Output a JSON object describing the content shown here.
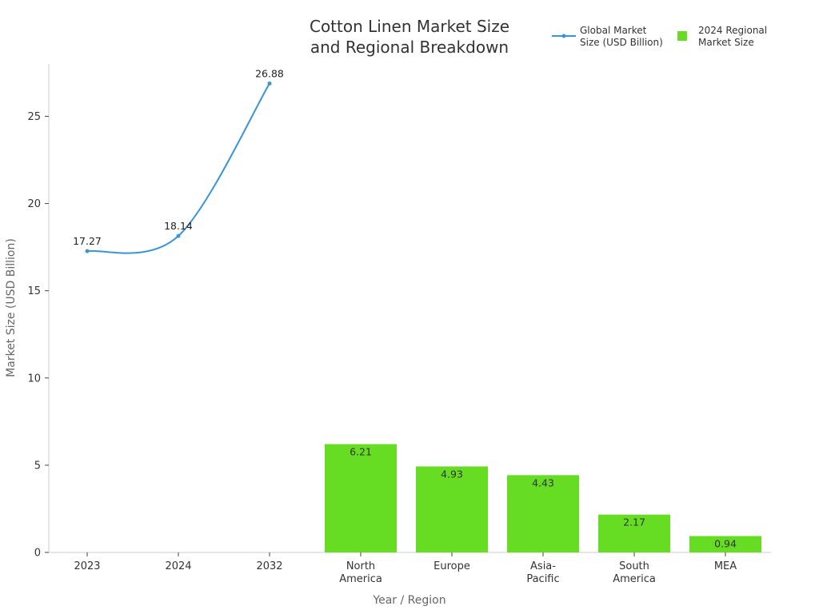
{
  "chart_data": {
    "type": "bar+line",
    "title": [
      "Cotton Linen Market Size",
      "and Regional Breakdown"
    ],
    "xlabel": "Year / Region",
    "ylabel": "Market Size (USD Billion)",
    "ylim": [
      0,
      28
    ],
    "yticks": [
      0,
      5,
      10,
      15,
      20,
      25
    ],
    "grid": false,
    "legend_position": "top-right",
    "categories": [
      [
        "2023"
      ],
      [
        "2024"
      ],
      [
        "2032"
      ],
      [
        "North",
        "America"
      ],
      [
        "Europe"
      ],
      [
        "Asia-",
        "Pacific"
      ],
      [
        "South",
        "America"
      ],
      [
        "MEA"
      ]
    ],
    "series": [
      {
        "name": [
          "Global Market",
          "Size (USD Billion)"
        ],
        "kind": "line",
        "color": "#3a95d8",
        "x": [
          "2023",
          "2024",
          "2032"
        ],
        "values": [
          17.27,
          18.14,
          26.88
        ],
        "labels": [
          "17.27",
          "18.14",
          "26.88"
        ]
      },
      {
        "name": [
          "2024 Regional",
          "Market Size"
        ],
        "kind": "bar",
        "color": "#66dd22",
        "x": [
          "North America",
          "Europe",
          "Asia-Pacific",
          "South America",
          "MEA"
        ],
        "values": [
          6.21,
          4.93,
          4.43,
          2.17,
          0.94
        ],
        "labels": [
          "6.21",
          "4.93",
          "4.43",
          "2.17",
          "0.94"
        ]
      }
    ]
  }
}
